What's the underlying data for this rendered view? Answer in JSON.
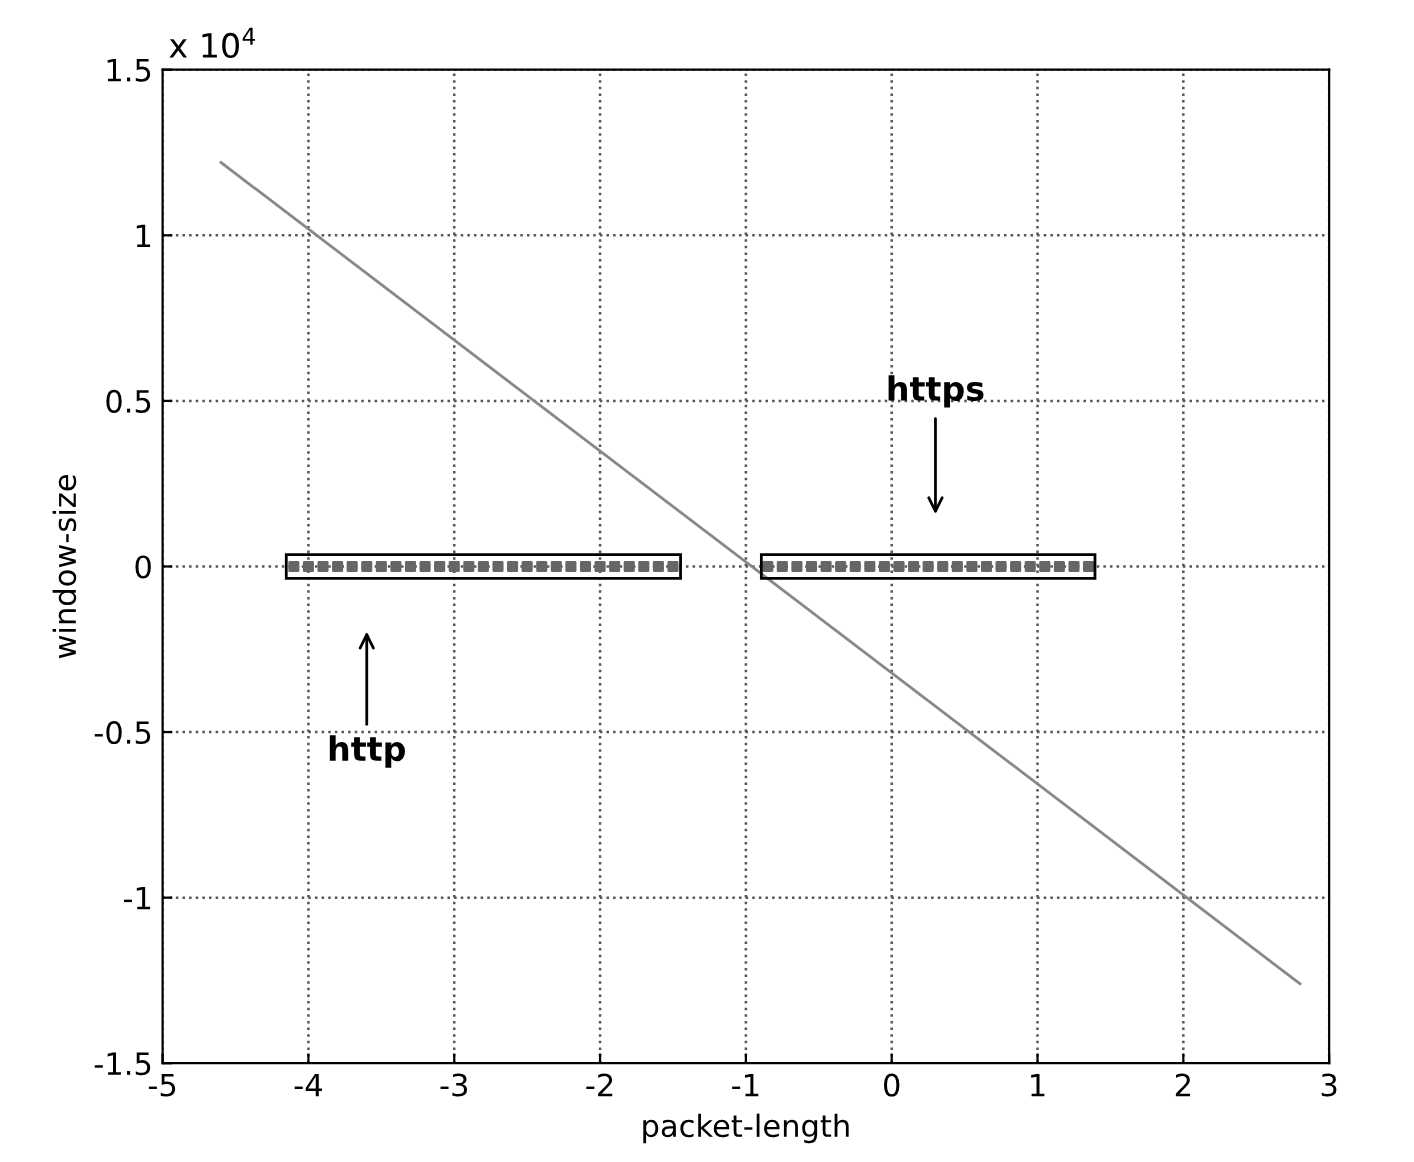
{
  "chart_data": {
    "type": "scatter",
    "xlabel": "packet-length",
    "ylabel": "window-size",
    "xlim": [
      -5,
      3
    ],
    "xticks": [
      -5,
      -4,
      -3,
      -2,
      -1,
      0,
      1,
      2,
      3
    ],
    "ylim": [
      -1.5,
      1.5
    ],
    "yticks": [
      -1.5,
      -1,
      -0.5,
      0,
      0.5,
      1,
      1.5
    ],
    "grid": true,
    "marker": "square",
    "legend": false,
    "annotations": [
      "x 10$^{4}$",
      "http",
      "https"
    ],
    "series": [
      {
        "color": "#666666",
        "x": [
          -4.1,
          -4.0,
          -3.9,
          -3.8,
          -3.7,
          -3.6,
          -3.5,
          -3.4,
          -3.3,
          -3.2,
          -3.1,
          -3.0,
          -2.9,
          -2.8,
          -2.7,
          -2.6,
          -2.5,
          -2.4,
          -2.3,
          -2.2,
          -2.1,
          -2.0,
          -1.9,
          -1.8,
          -1.7,
          -1.6,
          -1.5
        ],
        "values": [
          0,
          0,
          0,
          0,
          0,
          0,
          0,
          0,
          0,
          0,
          0,
          0,
          0,
          0,
          0,
          0,
          0,
          0,
          0,
          0,
          0,
          0,
          0,
          0,
          0,
          0,
          0
        ]
      },
      {
        "color": "#666666",
        "x": [
          -0.85,
          -0.75,
          -0.65,
          -0.55,
          -0.45,
          -0.35,
          -0.25,
          -0.15,
          -0.05,
          0.05,
          0.15,
          0.25,
          0.35,
          0.45,
          0.55,
          0.65,
          0.75,
          0.85,
          0.95,
          1.05,
          1.15,
          1.25,
          1.35
        ],
        "values": [
          0,
          0,
          0,
          0,
          0,
          0,
          0,
          0,
          0,
          0,
          0,
          0,
          0,
          0,
          0,
          0,
          0,
          0,
          0,
          0,
          0,
          0,
          0
        ]
      },
      {
        "type": "line",
        "color": "#888888",
        "marker": "none",
        "x": [
          -4.6,
          2.8
        ],
        "values": [
          1.22,
          -1.26
        ]
      }
    ]
  }
}
